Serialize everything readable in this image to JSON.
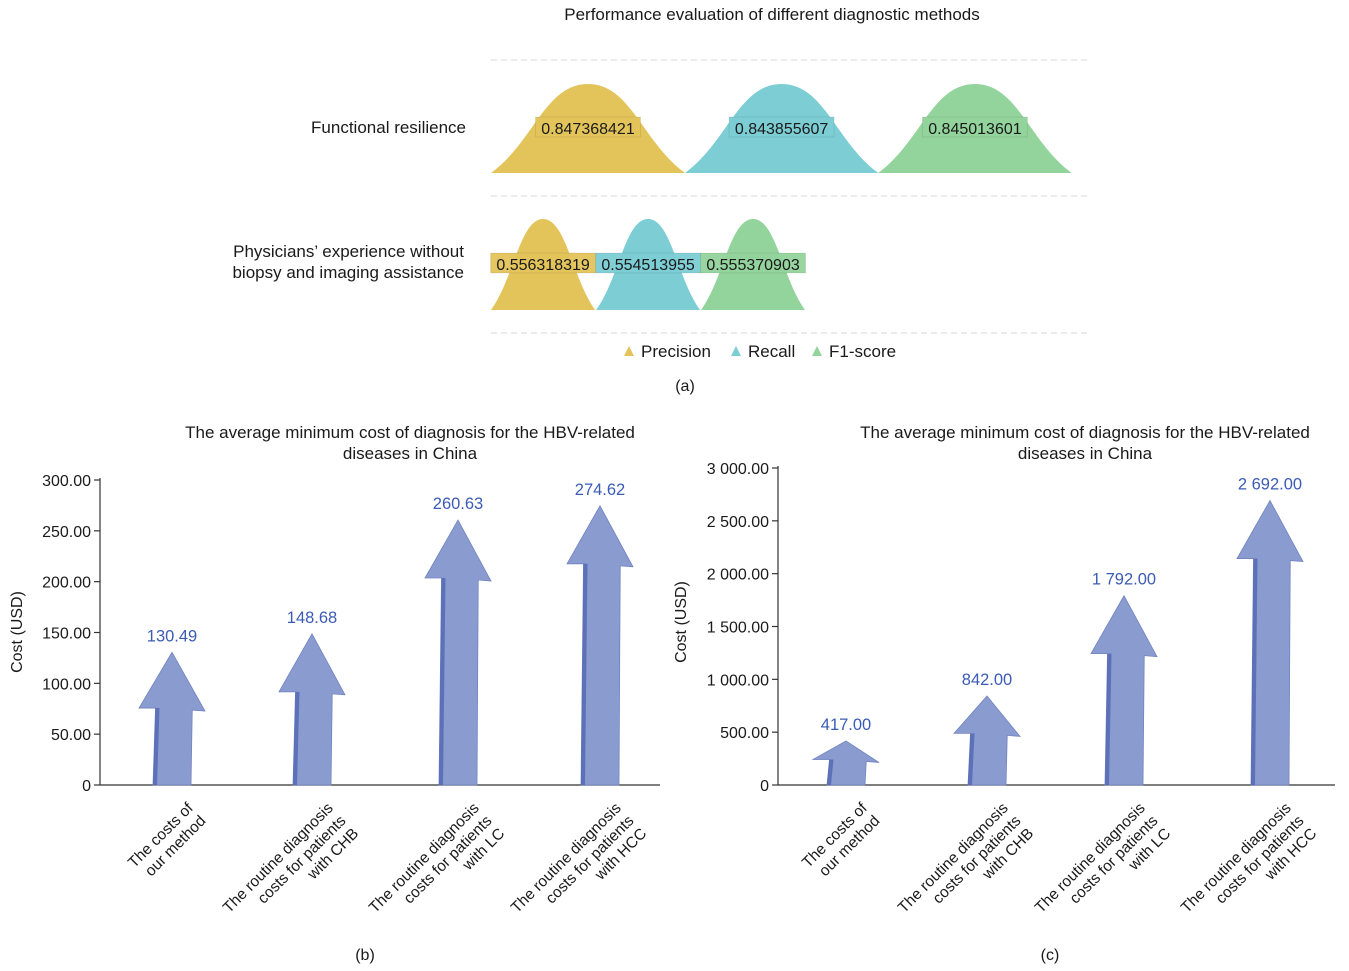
{
  "chart_data": [
    {
      "type": "area",
      "title": "Performance evaluation of different diagnostic methods",
      "categories": [
        "Functional resilience",
        "Physicians’ experience without biopsy and imaging assistance"
      ],
      "series": [
        {
          "name": "Precision",
          "values": [
            0.847368421,
            0.556318319
          ],
          "color": "#e3c45b"
        },
        {
          "name": "Recall",
          "values": [
            0.843855607,
            0.554513955
          ],
          "color": "#7ccdd4"
        },
        {
          "name": "F1-score",
          "values": [
            0.845013601,
            0.555370903
          ],
          "color": "#93d39c"
        }
      ],
      "value_labels": [
        [
          "0.847368421",
          "0.843855607",
          "0.845013601"
        ],
        [
          "0.556318319",
          "0.554513955",
          "0.555370903"
        ]
      ],
      "legend": "bottom",
      "sublabel": "(a)"
    },
    {
      "type": "bar",
      "title_lines": [
        "The average minimum cost of diagnosis for the HBV-related",
        "diseases in China"
      ],
      "ylabel": "Cost (USD)",
      "ylim": [
        0,
        300
      ],
      "yticks": [
        "0",
        "50.00",
        "100.00",
        "150.00",
        "200.00",
        "250.00",
        "300.00"
      ],
      "categories": [
        [
          "The costs of",
          "our method"
        ],
        [
          "The routine diagnosis",
          "costs for patients",
          "with CHB"
        ],
        [
          "The routine diagnosis",
          "costs for patients",
          "with LC"
        ],
        [
          "The routine diagnosis",
          "costs for patients",
          "with HCC"
        ]
      ],
      "values": [
        130.49,
        148.68,
        260.63,
        274.62
      ],
      "value_labels": [
        "130.49",
        "148.68",
        "260.63",
        "274.62"
      ],
      "color": "#8a9bd0",
      "sublabel": "(b)"
    },
    {
      "type": "bar",
      "title_lines": [
        "The average minimum cost of diagnosis for the HBV-related",
        "diseases in China"
      ],
      "ylabel": "Cost (USD)",
      "ylim": [
        0,
        3000
      ],
      "yticks": [
        "0",
        "500.00",
        "1 000.00",
        "1 500.00",
        "2 000.00",
        "2 500.00",
        "3 000.00"
      ],
      "categories": [
        [
          "The costs of",
          "our method"
        ],
        [
          "The routine diagnosis",
          "costs for patients",
          "with CHB"
        ],
        [
          "The routine diagnosis",
          "costs for patients",
          "with LC"
        ],
        [
          "The routine diagnosis",
          "costs for patients",
          "with HCC"
        ]
      ],
      "values": [
        417.0,
        842.0,
        1792.0,
        2692.0
      ],
      "value_labels": [
        "417.00",
        "842.00",
        "1 792.00",
        "2 692.00"
      ],
      "color": "#8a9bd0",
      "sublabel": "(c)"
    }
  ]
}
